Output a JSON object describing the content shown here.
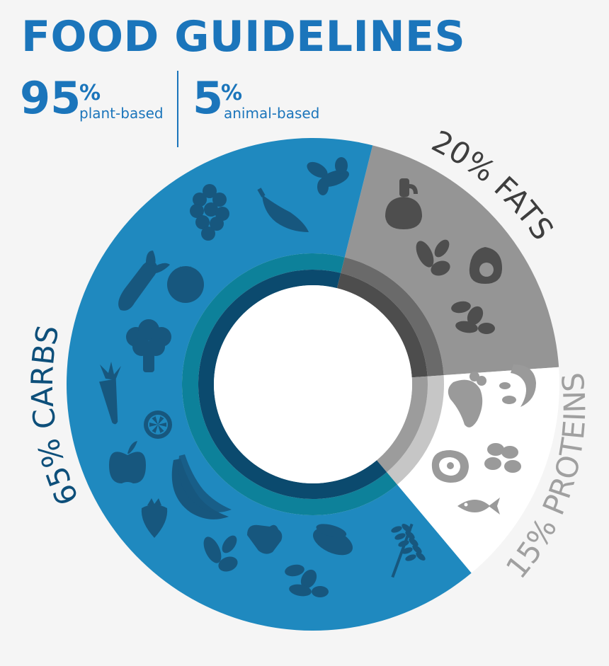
{
  "header": {
    "title": "FOOD GUIDELINES",
    "plant": {
      "value": "95",
      "unit": "%",
      "label": "plant-based"
    },
    "animal": {
      "value": "5",
      "unit": "%",
      "label": "animal-based"
    }
  },
  "chart_data": {
    "type": "pie",
    "variant": "donut",
    "segments": [
      {
        "label": "65% CARBS",
        "value": 65,
        "color": "#1f89bf",
        "inner_color": "#0d819a",
        "ring_color": "#0b4a6e",
        "icon_color": "#17577e",
        "text_color": "#0d4f7a"
      },
      {
        "label": "20% FATS",
        "value": 20,
        "color": "#959595",
        "inner_color": "#6a6a6a",
        "ring_color": "#4d4d4d",
        "icon_color": "#4e4e4e",
        "text_color": "#3e3e3e"
      },
      {
        "label": "15% PROTEINS",
        "value": 15,
        "color": "#ffffff",
        "inner_color": "#c6c6c6",
        "ring_color": "#9c9c9c",
        "icon_color": "#9a9a9a",
        "text_color": "#a0a0a0"
      }
    ],
    "icons": {
      "carbs": [
        "ginger-icon",
        "pepper-icon",
        "grapes-icon",
        "leek-icon",
        "tomato-icon",
        "broccoli-icon",
        "carrot-icon",
        "lemon-slice-icon",
        "apple-icon",
        "banana-icon",
        "strawberry-icon",
        "leaf-icon",
        "bread-icon",
        "beans-icon",
        "nuts-icon",
        "wheat-icon"
      ],
      "fats": [
        "oil-jar-icon",
        "leaf-icon",
        "avocado-icon",
        "nuts-icon"
      ],
      "proteins": [
        "chicken-leg-icon",
        "shrimp-icon",
        "steak-icon",
        "eggs-icon",
        "fish-icon"
      ]
    }
  }
}
